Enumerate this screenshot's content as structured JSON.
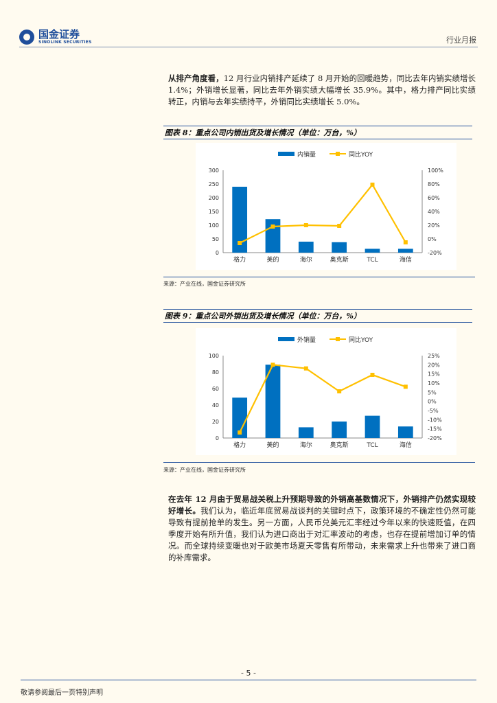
{
  "header": {
    "logo_cn": "国金证券",
    "logo_en": "SINOLINK SECURITIES",
    "report_type": "行业月报"
  },
  "paragraph1": {
    "bold_lead": "从排产角度看，",
    "text": "12 月行业内销排产延续了 8 月开始的回暖趋势，同比去年内销实绩增长 1.4%；外销增长显著，同比去年外销实绩大幅增长 35.9%。其中，格力排产同比实绩转正，内销与去年实绩持平，外销同比实绩增长 5.0%。"
  },
  "figure8": {
    "title": "图表 8：重点公司内销出货及增长情况（单位：万台，%）",
    "source": "来源：产业在线，国金证券研究所"
  },
  "figure9": {
    "title": "图表 9：重点公司外销出货及增长情况（单位：万台，%）",
    "source": "来源：产业在线，国金证券研究所"
  },
  "chart_data": [
    {
      "type": "bar",
      "categories": [
        "格力",
        "美的",
        "海尔",
        "奥克斯",
        "TCL",
        "海信"
      ],
      "series": [
        {
          "name": "内销量",
          "kind": "bar",
          "axis": "left",
          "color": "#0070c0",
          "values": [
            240,
            122,
            40,
            38,
            14,
            14
          ]
        },
        {
          "name": "同比YOY",
          "kind": "line",
          "axis": "right",
          "color": "#ffc000",
          "values": [
            -6,
            18,
            20,
            19,
            79,
            -5
          ]
        }
      ],
      "ylim": [
        0,
        300
      ],
      "yticks": [
        "0",
        "50",
        "100",
        "150",
        "200",
        "250",
        "300"
      ],
      "y2lim": [
        -20,
        100
      ],
      "y2ticks": [
        "-20%",
        "0%",
        "20%",
        "40%",
        "60%",
        "80%",
        "100%"
      ],
      "legend": "top"
    },
    {
      "type": "bar",
      "categories": [
        "格力",
        "美的",
        "海尔",
        "奥克斯",
        "TCL",
        "海信"
      ],
      "series": [
        {
          "name": "外销量",
          "kind": "bar",
          "axis": "left",
          "color": "#0070c0",
          "values": [
            49,
            89,
            13,
            20,
            27,
            14
          ]
        },
        {
          "name": "同比YOY",
          "kind": "line",
          "axis": "right",
          "color": "#ffc000",
          "values": [
            -17,
            20,
            18,
            5.5,
            14.5,
            8
          ]
        }
      ],
      "ylim": [
        0,
        100
      ],
      "yticks": [
        "0",
        "20",
        "40",
        "60",
        "80",
        "100"
      ],
      "y2lim": [
        -20,
        25
      ],
      "y2ticks": [
        "-20%",
        "-15%",
        "-10%",
        "-5%",
        "0%",
        "5%",
        "10%",
        "15%",
        "20%",
        "25%"
      ],
      "legend": "top"
    }
  ],
  "paragraph2": {
    "bold_lead": "在去年 12 月由于贸易战关税上升预期导致的外销高基数情况下，外销排产仍然实现较好增长。",
    "text": "我们认为，临近年底贸易战谈判的关键时点下，政策环境的不确定性仍然可能导致有提前抢单的发生。另一方面，人民币兑美元汇率经过今年以来的快速贬值，在四季度开始有所升值，我们认为进口商出于对汇率波动的考虑，也存在提前增加订单的情况。而全球持续变暖也对于欧美市场夏天零售有所带动，未来需求上升也带来了进口商的补库需求。"
  },
  "footer": {
    "page": "- 5 -",
    "disclaimer": "敬请参阅最后一页特别声明"
  }
}
